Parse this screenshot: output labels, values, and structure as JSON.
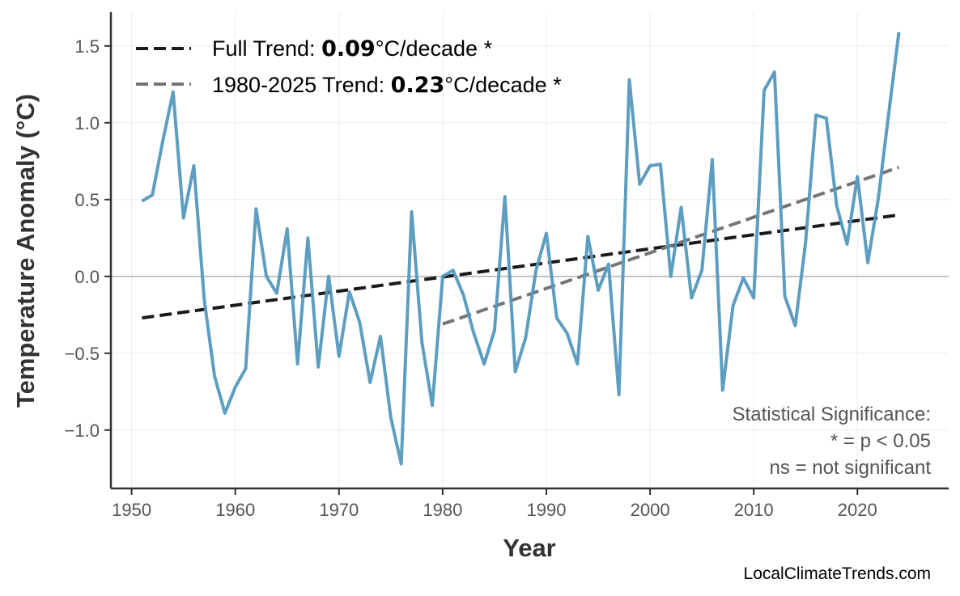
{
  "chart_data": {
    "type": "line",
    "xlabel": "Year",
    "ylabel": "Temperature Anomaly (°C)",
    "xlim": [
      1948,
      2028.8
    ],
    "ylim": [
      -1.38,
      1.72
    ],
    "xticks": [
      1950,
      1960,
      1970,
      1980,
      1990,
      2000,
      2010,
      2020
    ],
    "yticks": [
      -1.0,
      -0.5,
      0.0,
      0.5,
      1.0,
      1.5
    ],
    "ytick_labels": [
      "−1.0",
      "−0.5",
      "0.0",
      "0.5",
      "1.0",
      "1.5"
    ],
    "grid": true,
    "legend_position": "top-left",
    "colors": {
      "series": "#5499bd",
      "full_trend": "#1a1a1a",
      "recent_trend": "#757575",
      "zero_line": "#b0b0b0"
    },
    "series": [
      {
        "x": [
          1951,
          1952,
          1953,
          1954,
          1955,
          1956,
          1957,
          1958,
          1959,
          1960,
          1961,
          1962,
          1963,
          1964,
          1965,
          1966,
          1967,
          1968,
          1969,
          1970,
          1971,
          1972,
          1973,
          1974,
          1975,
          1976,
          1977,
          1978,
          1979,
          1980,
          1981,
          1982,
          1983,
          1984,
          1985,
          1986,
          1987,
          1988,
          1989,
          1990,
          1991,
          1992,
          1993,
          1994,
          1995,
          1996,
          1997,
          1998,
          1999,
          2000,
          2001,
          2002,
          2003,
          2004,
          2005,
          2006,
          2007,
          2008,
          2009,
          2010,
          2011,
          2012,
          2013,
          2014,
          2015,
          2016,
          2017,
          2018,
          2019,
          2020,
          2021,
          2022,
          2023,
          2024
        ],
        "y": [
          0.49,
          0.53,
          0.88,
          1.2,
          0.38,
          0.72,
          -0.15,
          -0.65,
          -0.89,
          -0.72,
          -0.6,
          0.44,
          0.0,
          -0.11,
          0.31,
          -0.57,
          0.25,
          -0.59,
          0.0,
          -0.52,
          -0.1,
          -0.3,
          -0.69,
          -0.39,
          -0.92,
          -1.22,
          0.42,
          -0.43,
          -0.84,
          0.0,
          0.04,
          -0.12,
          -0.37,
          -0.57,
          -0.35,
          0.52,
          -0.62,
          -0.4,
          0.04,
          0.28,
          -0.27,
          -0.37,
          -0.57,
          0.26,
          -0.09,
          0.08,
          -0.77,
          1.28,
          0.6,
          0.72,
          0.73,
          0.0,
          0.45,
          -0.14,
          0.04,
          0.76,
          -0.74,
          -0.19,
          -0.01,
          -0.14,
          1.21,
          1.33,
          -0.13,
          -0.32,
          0.22,
          1.05,
          1.03,
          0.46,
          0.21,
          0.65,
          0.09,
          0.5,
          1.05,
          1.59
        ]
      }
    ],
    "trends": [
      {
        "label_prefix": "Full Trend: ",
        "value": "0.09",
        "label_suffix": "°C/decade *",
        "x": [
          1951,
          2024
        ],
        "y": [
          -0.27,
          0.4
        ]
      },
      {
        "label_prefix": "1980-2025 Trend: ",
        "value": "0.23",
        "label_suffix": "°C/decade *",
        "x": [
          1980,
          2024
        ],
        "y": [
          -0.31,
          0.71
        ]
      }
    ],
    "annotation": [
      "Statistical Significance:",
      "* = p < 0.05",
      "ns = not significant"
    ]
  },
  "credit": "LocalClimateTrends.com"
}
